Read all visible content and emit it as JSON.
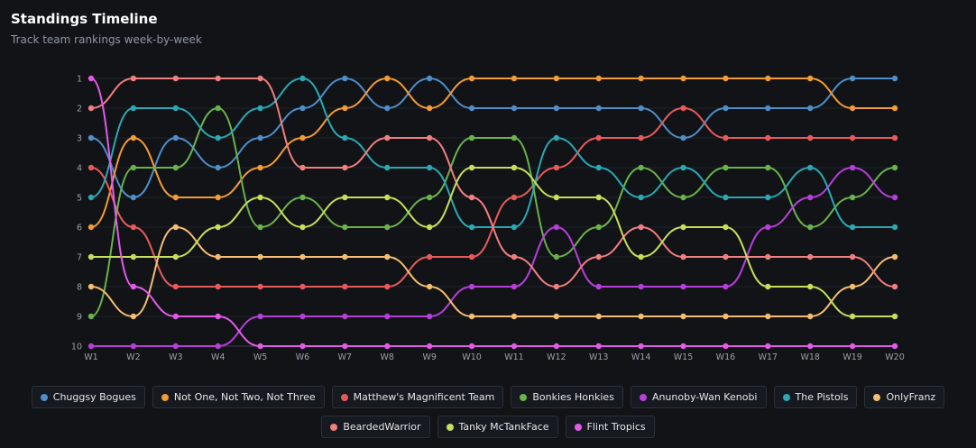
{
  "header": {
    "title": "Standings Timeline",
    "subtitle": "Track team rankings week-by-week"
  },
  "chart_data": {
    "type": "line",
    "title": "Standings Timeline",
    "subtitle": "Track team rankings week-by-week",
    "xlabel": "",
    "ylabel": "",
    "x": [
      "W1",
      "W2",
      "W3",
      "W4",
      "W5",
      "W6",
      "W7",
      "W8",
      "W9",
      "W10",
      "W11",
      "W12",
      "W13",
      "W14",
      "W15",
      "W16",
      "W17",
      "W18",
      "W19",
      "W20"
    ],
    "y_ticks": [
      "1",
      "2",
      "3",
      "4",
      "5",
      "6",
      "7",
      "8",
      "9",
      "10"
    ],
    "ylim": [
      1,
      10
    ],
    "y_inverted": true,
    "grid": true,
    "legend_position": "bottom",
    "series": [
      {
        "name": "Chuggsy Bogues",
        "color": "#4e8ec9",
        "values": [
          3,
          5,
          3,
          4,
          3,
          2,
          1,
          2,
          1,
          2,
          2,
          2,
          2,
          2,
          3,
          2,
          2,
          2,
          1,
          1
        ]
      },
      {
        "name": "Not One, Not Two, Not Three",
        "color": "#f39b34",
        "values": [
          6,
          3,
          5,
          5,
          4,
          3,
          2,
          1,
          2,
          1,
          1,
          1,
          1,
          1,
          1,
          1,
          1,
          1,
          2,
          2
        ]
      },
      {
        "name": "Matthew's Magnificent Team",
        "color": "#e75a5a",
        "values": [
          4,
          6,
          8,
          8,
          8,
          8,
          8,
          8,
          7,
          7,
          5,
          4,
          3,
          3,
          2,
          3,
          3,
          3,
          3,
          3
        ]
      },
      {
        "name": "Bonkies Honkies",
        "color": "#6ab24b",
        "values": [
          9,
          4,
          4,
          2,
          6,
          5,
          6,
          6,
          5,
          3,
          3,
          7,
          6,
          4,
          5,
          4,
          4,
          6,
          5,
          4
        ]
      },
      {
        "name": "Anunoby-Wan Kenobi",
        "color": "#b63fd8",
        "values": [
          10,
          10,
          10,
          10,
          9,
          9,
          9,
          9,
          9,
          8,
          8,
          6,
          8,
          8,
          8,
          8,
          6,
          5,
          4,
          5
        ]
      },
      {
        "name": "The Pistols",
        "color": "#2ba8b3",
        "values": [
          5,
          2,
          2,
          3,
          2,
          1,
          3,
          4,
          4,
          6,
          6,
          3,
          4,
          5,
          4,
          5,
          5,
          4,
          6,
          6
        ]
      },
      {
        "name": "OnlyFranz",
        "color": "#f5bd73",
        "values": [
          8,
          9,
          6,
          7,
          7,
          7,
          7,
          7,
          8,
          9,
          9,
          9,
          9,
          9,
          9,
          9,
          9,
          9,
          8,
          7
        ]
      },
      {
        "name": "BeardedWarrior",
        "color": "#f07f7f",
        "values": [
          2,
          1,
          1,
          1,
          1,
          4,
          4,
          3,
          3,
          5,
          7,
          8,
          7,
          6,
          7,
          7,
          7,
          7,
          7,
          8
        ]
      },
      {
        "name": "Tanky McTankFace",
        "color": "#c6de5a",
        "values": [
          7,
          7,
          7,
          6,
          5,
          6,
          5,
          5,
          6,
          4,
          4,
          5,
          5,
          7,
          6,
          6,
          8,
          8,
          9,
          9
        ]
      },
      {
        "name": "Flint Tropics",
        "color": "#e25be8",
        "values": [
          1,
          8,
          9,
          9,
          10,
          10,
          10,
          10,
          10,
          10,
          10,
          10,
          10,
          10,
          10,
          10,
          10,
          10,
          10,
          10
        ]
      }
    ]
  }
}
